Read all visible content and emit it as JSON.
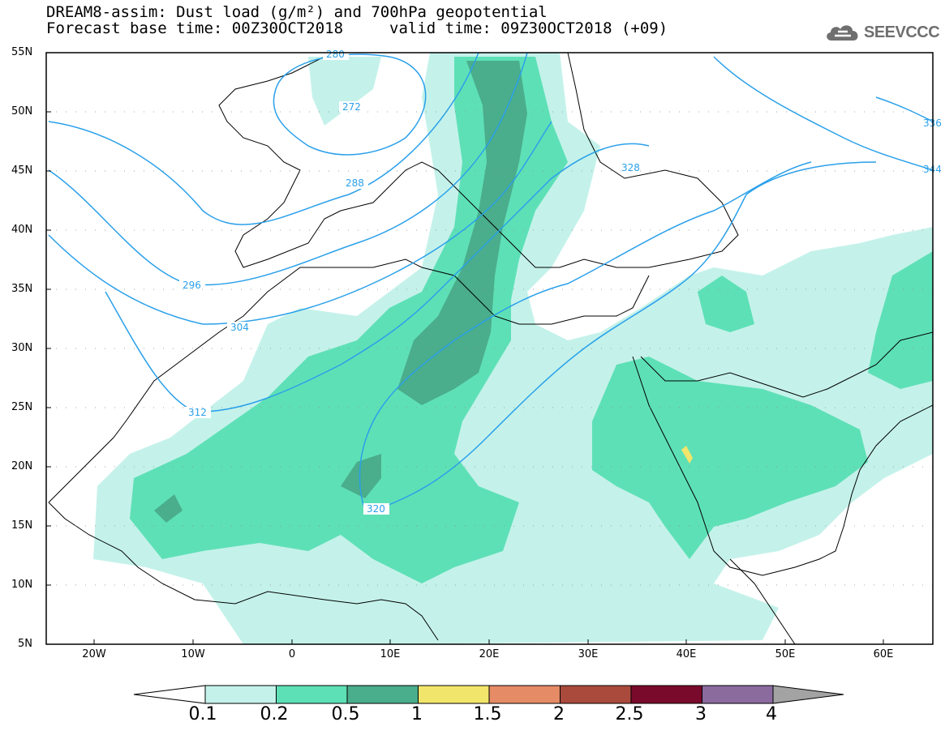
{
  "header": {
    "title_line1": "DREAM8-assim: Dust load (g/m²) and 700hPa geopotential",
    "title_line2": "Forecast base time: 00Z30OCT2018",
    "valid_time": "valid time: 09Z30OCT2018 (+09)",
    "logo_text": "SEEVCCC",
    "logo_icon": "cloud-icon"
  },
  "axes": {
    "lat_labels": [
      "55N",
      "50N",
      "45N",
      "40N",
      "35N",
      "30N",
      "25N",
      "20N",
      "15N",
      "10N",
      "5N"
    ],
    "lon_labels": [
      "20W",
      "10W",
      "0",
      "10E",
      "20E",
      "30E",
      "40E",
      "50E",
      "60E"
    ]
  },
  "contours": {
    "units": "geopotential",
    "labels": [
      "280",
      "272",
      "288",
      "328",
      "296",
      "304",
      "312",
      "320",
      "336",
      "344"
    ]
  },
  "colorbar": {
    "tick_labels": [
      "0.1",
      "0.2",
      "0.5",
      "1",
      "1.5",
      "2",
      "2.5",
      "3",
      "4"
    ],
    "colors": [
      "#ffffff",
      "#c4f2ea",
      "#5ee0b6",
      "#4aad8b",
      "#f2e56b",
      "#e58b66",
      "#a94a3c",
      "#7a0a2c",
      "#8b6a9e",
      "#a3a3a3"
    ]
  },
  "colors": {
    "dust_low": "#c4f2ea",
    "dust_mid": "#5ee0b6",
    "dust_high": "#4aad8b",
    "dust_peak": "#f2e56b",
    "contour_line": "#2aa0ea",
    "coastline": "#000000"
  }
}
